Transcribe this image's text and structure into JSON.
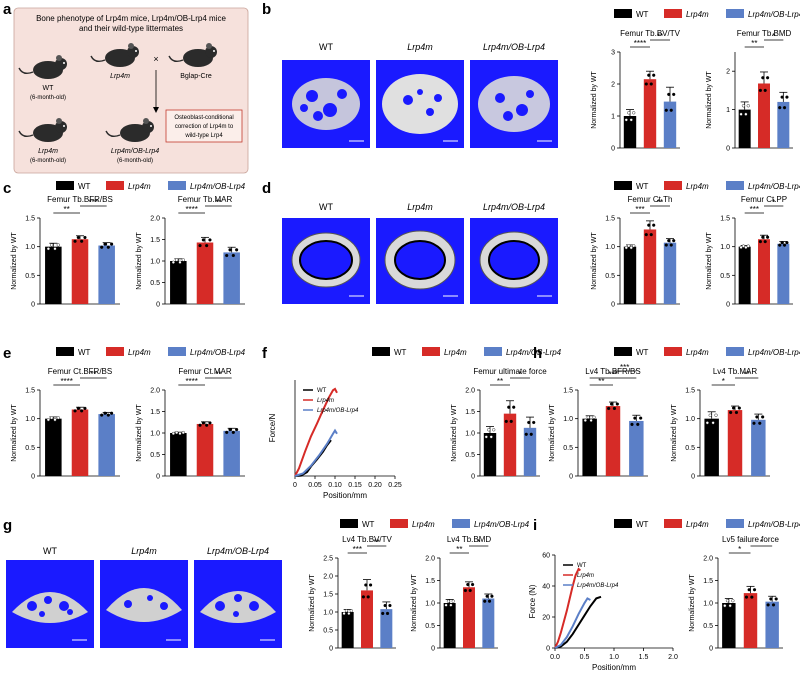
{
  "panels": {
    "a": "a",
    "b": "b",
    "c": "c",
    "d": "d",
    "e": "e",
    "f": "f",
    "g": "g",
    "h": "h",
    "i": "i"
  },
  "colors": {
    "wt": "#000000",
    "lrp4m": "#d62b27",
    "ob": "#5b7fc7",
    "scan_bg": "#1a1aff",
    "scheme_bg": "#f6e1dc"
  },
  "legend": {
    "wt": "WT",
    "lrp4m": "Lrp4m",
    "ob": "Lrp4m/OB-Lrp4"
  },
  "scheme": {
    "title_line1": "Bone phenotype of Lrp4m mice, Lrp4m/OB-Lrp4 mice",
    "title_line2": "and their wild-type littermates",
    "wt_label": "WT",
    "wt_age": "(6-month-old)",
    "lrp4m_label": "Lrp4m",
    "bglap_label": "Bglap-Cre",
    "cross": "×",
    "lrp4m2_label": "Lrp4m",
    "lrp4m2_age": "(6-month-old)",
    "ob_label": "Lrp4m/OB-Lrp4",
    "ob_age": "(6-month-old)",
    "note_line1": "Osteoblast-conditional",
    "note_line2": "correction of Lrp4m to",
    "note_line3": "wild-type Lrp4"
  },
  "scan_labels": {
    "wt": "WT",
    "lrp4m": "Lrp4m",
    "ob": "Lrp4m/OB-Lrp4"
  },
  "y_axis_label": "Normalized by WT",
  "chart_data": [
    {
      "id": "b1",
      "type": "bar",
      "title": "Femur Tb.BV/TV",
      "ylabel": "Normalized by WT",
      "categories": [
        "WT",
        "Lrp4m",
        "Lrp4m/OB-Lrp4"
      ],
      "values": [
        1.0,
        2.15,
        1.45
      ],
      "errors": [
        0.2,
        0.25,
        0.45
      ],
      "ylim": [
        0,
        3
      ],
      "yticks": [
        "0",
        "1",
        "2",
        "3"
      ],
      "significance": [
        {
          "label": "****",
          "pair": [
            0,
            1
          ]
        },
        {
          "label": "**",
          "pair": [
            1,
            2
          ]
        }
      ]
    },
    {
      "id": "b2",
      "type": "bar",
      "title": "Femur Tb.BMD",
      "ylabel": "Normalized by WT",
      "categories": [
        "WT",
        "Lrp4m",
        "Lrp4m/OB-Lrp4"
      ],
      "values": [
        1.0,
        1.68,
        1.2
      ],
      "errors": [
        0.2,
        0.3,
        0.25
      ],
      "ylim": [
        0,
        2.5
      ],
      "yticks": [
        "0",
        "1",
        "2"
      ],
      "significance": [
        {
          "label": "**",
          "pair": [
            0,
            1
          ]
        },
        {
          "label": "*",
          "pair": [
            1,
            2
          ]
        }
      ]
    },
    {
      "id": "c1",
      "type": "bar",
      "title": "Femur Tb.BFR/BS",
      "ylabel": "Normalized by WT",
      "categories": [
        "WT",
        "Lrp4m",
        "Lrp4m/OB-Lrp4"
      ],
      "values": [
        1.0,
        1.13,
        1.02
      ],
      "errors": [
        0.06,
        0.06,
        0.05
      ],
      "ylim": [
        0,
        1.5
      ],
      "yticks": [
        "0",
        "0.5",
        "1.0",
        "1.5"
      ],
      "significance": [
        {
          "label": "**",
          "pair": [
            0,
            1
          ]
        },
        {
          "label": "***",
          "pair": [
            1,
            2
          ]
        }
      ]
    },
    {
      "id": "c2",
      "type": "bar",
      "title": "Femur Tb.MAR",
      "ylabel": "Normalized by WT",
      "categories": [
        "WT",
        "Lrp4m",
        "Lrp4m/OB-Lrp4"
      ],
      "values": [
        1.0,
        1.43,
        1.2
      ],
      "errors": [
        0.05,
        0.12,
        0.12
      ],
      "ylim": [
        0,
        2.0
      ],
      "yticks": [
        "0",
        "0.5",
        "1.0",
        "1.5",
        "2.0"
      ],
      "significance": [
        {
          "label": "****",
          "pair": [
            0,
            1
          ]
        },
        {
          "label": "**",
          "pair": [
            1,
            2
          ]
        }
      ]
    },
    {
      "id": "d1",
      "type": "bar",
      "title": "Femur Ct.Th",
      "ylabel": "Normalized by WT",
      "categories": [
        "WT",
        "Lrp4m",
        "Lrp4m/OB-Lrp4"
      ],
      "values": [
        1.0,
        1.3,
        1.07
      ],
      "errors": [
        0.03,
        0.15,
        0.07
      ],
      "ylim": [
        0,
        1.5
      ],
      "yticks": [
        "0",
        "0.5",
        "1.0",
        "1.5"
      ],
      "significance": [
        {
          "label": "***",
          "pair": [
            0,
            1
          ]
        },
        {
          "label": "**",
          "pair": [
            1,
            2
          ]
        }
      ]
    },
    {
      "id": "d2",
      "type": "bar",
      "title": "Femur Ct.PP",
      "ylabel": "Normalized by WT",
      "categories": [
        "WT",
        "Lrp4m",
        "Lrp4m/OB-Lrp4"
      ],
      "values": [
        1.0,
        1.13,
        1.05
      ],
      "errors": [
        0.02,
        0.07,
        0.04
      ],
      "ylim": [
        0,
        1.5
      ],
      "yticks": [
        "0",
        "0.5",
        "1.0",
        "1.5"
      ],
      "significance": [
        {
          "label": "***",
          "pair": [
            0,
            1
          ]
        },
        {
          "label": "*",
          "pair": [
            1,
            2
          ]
        }
      ]
    },
    {
      "id": "e1",
      "type": "bar",
      "title": "Femur Ct.BFR/BS",
      "ylabel": "Normalized by WT",
      "categories": [
        "WT",
        "Lrp4m",
        "Lrp4m/OB-Lrp4"
      ],
      "values": [
        1.0,
        1.16,
        1.08
      ],
      "errors": [
        0.03,
        0.04,
        0.03
      ],
      "ylim": [
        0,
        1.5
      ],
      "yticks": [
        "0",
        "0.5",
        "1.0",
        "1.5"
      ],
      "significance": [
        {
          "label": "****",
          "pair": [
            0,
            1
          ]
        },
        {
          "label": "**",
          "pair": [
            1,
            2
          ]
        }
      ]
    },
    {
      "id": "e2",
      "type": "bar",
      "title": "Femur Ct.MAR",
      "ylabel": "Normalized by WT",
      "categories": [
        "WT",
        "Lrp4m",
        "Lrp4m/OB-Lrp4"
      ],
      "values": [
        1.0,
        1.21,
        1.05
      ],
      "errors": [
        0.02,
        0.05,
        0.06
      ],
      "ylim": [
        0,
        2.0
      ],
      "yticks": [
        "0",
        "0.5",
        "1.0",
        "1.5",
        "2.0"
      ],
      "significance": [
        {
          "label": "****",
          "pair": [
            0,
            1
          ]
        },
        {
          "label": "**",
          "pair": [
            1,
            2
          ]
        }
      ]
    },
    {
      "id": "f2",
      "type": "bar",
      "title": "Femur ultimate force",
      "ylabel": "Normalized by WT",
      "categories": [
        "WT",
        "Lrp4m",
        "Lrp4m/OB-Lrp4"
      ],
      "values": [
        1.0,
        1.45,
        1.12
      ],
      "errors": [
        0.15,
        0.3,
        0.25
      ],
      "ylim": [
        0,
        2.0
      ],
      "yticks": [
        "0",
        "0.5",
        "1.0",
        "1.5",
        "2.0"
      ],
      "significance": [
        {
          "label": "**",
          "pair": [
            0,
            1
          ]
        },
        {
          "label": "*",
          "pair": [
            1,
            2
          ]
        }
      ]
    },
    {
      "id": "h1",
      "type": "bar",
      "title": "Lv4 Tb.BFR/BS",
      "ylabel": "Normalized by WT",
      "categories": [
        "WT",
        "Lrp4m",
        "Lrp4m/OB-Lrp4"
      ],
      "values": [
        1.0,
        1.22,
        0.96
      ],
      "errors": [
        0.05,
        0.07,
        0.1
      ],
      "ylim": [
        0,
        1.5
      ],
      "yticks": [
        "0",
        "0.5",
        "1.0",
        "1.5"
      ],
      "significance": [
        {
          "label": "**",
          "pair": [
            0,
            1
          ]
        },
        {
          "label": "***",
          "pair": [
            0,
            2
          ]
        },
        {
          "label": "***",
          "pair": [
            1,
            2
          ]
        }
      ]
    },
    {
      "id": "h2",
      "type": "bar",
      "title": "Lv4 Tb.MAR",
      "ylabel": "Normalized by WT",
      "categories": [
        "WT",
        "Lrp4m",
        "Lrp4m/OB-Lrp4"
      ],
      "values": [
        1.0,
        1.15,
        0.98
      ],
      "errors": [
        0.12,
        0.07,
        0.1
      ],
      "ylim": [
        0,
        1.5
      ],
      "yticks": [
        "0",
        "0.5",
        "1.0",
        "1.5"
      ],
      "significance": [
        {
          "label": "*",
          "pair": [
            0,
            1
          ]
        },
        {
          "label": "**",
          "pair": [
            1,
            2
          ]
        }
      ]
    },
    {
      "id": "g1",
      "type": "bar",
      "title": "Lv4 Tb.BV/TV",
      "ylabel": "Normalized by WT",
      "categories": [
        "WT",
        "Lrp4m",
        "Lrp4m/OB-Lrp4"
      ],
      "values": [
        1.0,
        1.6,
        1.08
      ],
      "errors": [
        0.07,
        0.3,
        0.2
      ],
      "ylim": [
        0,
        2.5
      ],
      "yticks": [
        "0",
        "0.5",
        "1.0",
        "1.5",
        "2.0",
        "2.5"
      ],
      "significance": [
        {
          "label": "***",
          "pair": [
            0,
            1
          ]
        },
        {
          "label": "**",
          "pair": [
            1,
            2
          ]
        }
      ]
    },
    {
      "id": "g2",
      "type": "bar",
      "title": "Lv4 Tb.BMD",
      "ylabel": "Normalized by WT",
      "categories": [
        "WT",
        "Lrp4m",
        "Lrp4m/OB-Lrp4"
      ],
      "values": [
        1.0,
        1.35,
        1.1
      ],
      "errors": [
        0.08,
        0.12,
        0.1
      ],
      "ylim": [
        0,
        2.0
      ],
      "yticks": [
        "0",
        "0.5",
        "1.0",
        "1.5",
        "2.0"
      ],
      "significance": [
        {
          "label": "**",
          "pair": [
            0,
            1
          ]
        },
        {
          "label": "*",
          "pair": [
            1,
            2
          ]
        }
      ]
    },
    {
      "id": "i2",
      "type": "bar",
      "title": "Lv5 failure force",
      "ylabel": "Normalized by WT",
      "categories": [
        "WT",
        "Lrp4m",
        "Lrp4m/OB-Lrp4"
      ],
      "values": [
        1.0,
        1.22,
        1.03
      ],
      "errors": [
        0.1,
        0.15,
        0.12
      ],
      "ylim": [
        0,
        2.0
      ],
      "yticks": [
        "0",
        "0.5",
        "1.0",
        "1.5",
        "2.0"
      ],
      "significance": [
        {
          "label": "*",
          "pair": [
            0,
            1
          ]
        },
        {
          "label": "*",
          "pair": [
            1,
            2
          ]
        }
      ]
    },
    {
      "id": "f1",
      "type": "line",
      "xlabel": "Position/mm",
      "ylabel": "Force/N",
      "xlim": [
        0,
        0.25
      ],
      "xticks": [
        "0",
        "0.05",
        "0.10",
        "0.15",
        "0.20",
        "0.25"
      ],
      "legend": [
        "WT",
        "Lrp4m",
        "Lrp4m/OB-Lrp4"
      ],
      "series": [
        {
          "name": "WT",
          "x": [
            0.0,
            0.015,
            0.03,
            0.04,
            0.055,
            0.07,
            0.08,
            0.09
          ],
          "y": [
            0.0,
            0.05,
            0.6,
            1.5,
            2.6,
            3.8,
            4.8,
            5.6
          ]
        },
        {
          "name": "Lrp4m",
          "x": [
            0.0,
            0.01,
            0.025,
            0.04,
            0.055,
            0.07,
            0.085,
            0.095,
            0.1,
            0.105
          ],
          "y": [
            0.0,
            1.2,
            3.8,
            6.2,
            8.2,
            10.3,
            12.3,
            13.4,
            13.6,
            13.0
          ]
        },
        {
          "name": "Lrp4m/OB-Lrp4",
          "x": [
            0.0,
            0.02,
            0.04,
            0.06,
            0.08,
            0.095,
            0.1,
            0.105
          ],
          "y": [
            0.0,
            0.4,
            1.6,
            3.2,
            5.0,
            6.6,
            7.1,
            6.6
          ]
        }
      ]
    },
    {
      "id": "i1",
      "type": "line",
      "xlabel": "Position/mm",
      "ylabel": "Force (N)",
      "xlim": [
        0,
        2.0
      ],
      "ylim": [
        0,
        60
      ],
      "xticks": [
        "0.0",
        "0.5",
        "1.0",
        "1.5",
        "2.0"
      ],
      "yticks": [
        "0",
        "20",
        "40",
        "60"
      ],
      "legend": [
        "WT",
        "Lrp4m",
        "Lrp4m/OB-Lrp4"
      ],
      "series": [
        {
          "name": "WT",
          "x": [
            0.0,
            0.1,
            0.2,
            0.3,
            0.4,
            0.5,
            0.6,
            0.7,
            0.78
          ],
          "y": [
            0.0,
            1,
            4,
            9,
            15,
            21,
            27,
            32,
            33
          ]
        },
        {
          "name": "Lrp4m",
          "x": [
            0.0,
            0.05,
            0.1,
            0.15,
            0.2,
            0.25,
            0.3,
            0.35,
            0.4,
            0.43
          ],
          "y": [
            0.0,
            4,
            10,
            17,
            24,
            32,
            40,
            47,
            51,
            50
          ]
        },
        {
          "name": "Lrp4m/OB-Lrp4",
          "x": [
            0.0,
            0.1,
            0.2,
            0.3,
            0.4,
            0.5,
            0.55,
            0.6
          ],
          "y": [
            0.0,
            2,
            7,
            14,
            22,
            29,
            32,
            31
          ]
        }
      ]
    }
  ]
}
